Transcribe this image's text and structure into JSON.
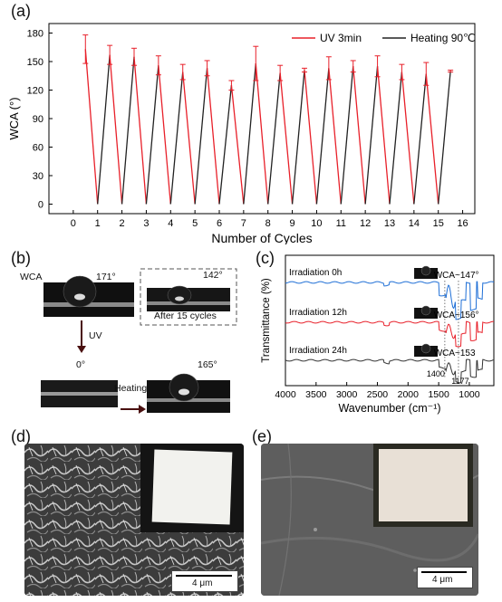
{
  "panels": {
    "a": "(a)",
    "b": "(b)",
    "c": "(c)",
    "d": "(d)",
    "e": "(e)"
  },
  "chart_data": [
    {
      "type": "line",
      "panel": "(a)",
      "xlabel": "Number of Cycles",
      "ylabel": "WCA (°)",
      "xlim": [
        -1,
        16.5
      ],
      "ylim": [
        -10,
        190
      ],
      "xticks": [
        0,
        1,
        2,
        3,
        4,
        5,
        6,
        7,
        8,
        9,
        10,
        11,
        12,
        13,
        14,
        15,
        16
      ],
      "yticks": [
        0,
        30,
        60,
        90,
        120,
        150,
        180
      ],
      "legend": {
        "placement": "top-right",
        "entries": [
          "UV 3min",
          "Heating 90℃"
        ]
      },
      "series": [
        {
          "name": "UV 3min",
          "color": "#e8202a",
          "points": [
            [
              0.5,
              163
            ],
            [
              1,
              0
            ],
            [
              1.5,
              157
            ],
            [
              2,
              0
            ],
            [
              2.5,
              155
            ],
            [
              3,
              0
            ],
            [
              3.5,
              146
            ],
            [
              4,
              0
            ],
            [
              4.5,
              139
            ],
            [
              5,
              0
            ],
            [
              5.5,
              143
            ],
            [
              6,
              0
            ],
            [
              6.5,
              125
            ],
            [
              7,
              0
            ],
            [
              7.5,
              148
            ],
            [
              8,
              0
            ],
            [
              8.5,
              138
            ],
            [
              9,
              0
            ],
            [
              9.5,
              141
            ],
            [
              10,
              0
            ],
            [
              10.5,
              143
            ],
            [
              11,
              0
            ],
            [
              11.5,
              145
            ],
            [
              12,
              0
            ],
            [
              12.5,
              145
            ],
            [
              13,
              0
            ],
            [
              13.5,
              139
            ],
            [
              14,
              0
            ],
            [
              14.5,
              137
            ],
            [
              15,
              0
            ],
            [
              15.5,
              140
            ]
          ],
          "errors": [
            [
              0.5,
              15
            ],
            [
              1.5,
              10
            ],
            [
              2.5,
              9
            ],
            [
              3.5,
              10
            ],
            [
              4.5,
              8
            ],
            [
              5.5,
              8
            ],
            [
              6.5,
              5
            ],
            [
              7.5,
              18
            ],
            [
              8.5,
              8
            ],
            [
              9.5,
              2
            ],
            [
              10.5,
              12
            ],
            [
              11.5,
              6
            ],
            [
              12.5,
              11
            ],
            [
              13.5,
              8
            ],
            [
              14.5,
              12
            ],
            [
              15.5,
              1
            ]
          ]
        },
        {
          "name": "Heating 90℃",
          "color": "#222222",
          "points": [
            [
              1,
              0
            ],
            [
              1.5,
              157
            ],
            [
              2,
              0
            ],
            [
              2.5,
              155
            ],
            [
              3,
              0
            ],
            [
              3.5,
              146
            ],
            [
              4,
              0
            ],
            [
              4.5,
              139
            ],
            [
              5,
              0
            ],
            [
              5.5,
              143
            ],
            [
              6,
              0
            ],
            [
              6.5,
              125
            ],
            [
              7,
              0
            ],
            [
              7.5,
              148
            ],
            [
              8,
              0
            ],
            [
              8.5,
              138
            ],
            [
              9,
              0
            ],
            [
              9.5,
              141
            ],
            [
              10,
              0
            ],
            [
              10.5,
              143
            ],
            [
              11,
              0
            ],
            [
              11.5,
              145
            ],
            [
              12,
              0
            ],
            [
              12.5,
              145
            ],
            [
              13,
              0
            ],
            [
              13.5,
              139
            ],
            [
              14,
              0
            ],
            [
              14.5,
              137
            ],
            [
              15,
              0
            ],
            [
              15.5,
              140
            ]
          ]
        }
      ]
    },
    {
      "type": "line",
      "panel": "(c)",
      "xlabel": "Wavenumber  (cm⁻¹)",
      "ylabel": "Transmittance  (%)",
      "xlim": [
        4000,
        600
      ],
      "x_reversed": true,
      "xticks": [
        4000,
        3500,
        3000,
        2500,
        2000,
        1500,
        1000
      ],
      "annotations": [
        "1400",
        "1177"
      ],
      "series": [
        {
          "name": "Irradiation 0h",
          "color": "#1f6fd6",
          "label_wca": "WCA~147°"
        },
        {
          "name": "Irradiation 12h",
          "color": "#e8202a",
          "label_wca": "WCA~156°"
        },
        {
          "name": "Irradiation 24h",
          "color": "#333333",
          "label_wca": "WCA~153"
        }
      ]
    }
  ],
  "panel_b": {
    "wca": "WCA",
    "angle1": "171°",
    "angle2": "142°",
    "after": "After 15 cycles",
    "uv": "UV",
    "angle0": "0°",
    "heating": "Heating",
    "angle3": "165°"
  },
  "panel_d": {
    "scale": "4 μm"
  },
  "panel_e": {
    "scale": "4 μm"
  }
}
